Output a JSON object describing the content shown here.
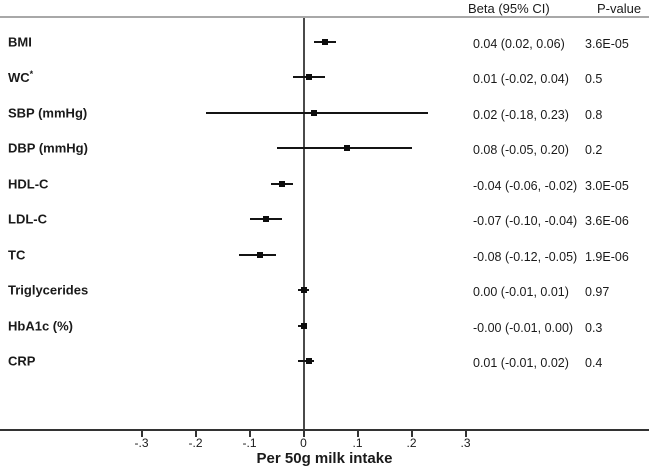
{
  "header": {
    "beta_ci_label": "Beta (95% CI)",
    "p_value_label": "P-value"
  },
  "colors": {
    "text": "#1a1a1a",
    "ci_line": "#141414",
    "marker": "#0d0d0d",
    "zero_line": "#4a4a4a",
    "axis_line": "#333333",
    "header_rule": "#a8a8a8",
    "background": "#ffffff"
  },
  "chart_data": {
    "type": "forest",
    "title": "",
    "xlabel": "Per 50g milk intake",
    "ylabel": "",
    "xlim": [
      -0.56,
      0.64
    ],
    "grid": false,
    "legend": "none",
    "x_ticks": [
      {
        "value": -0.3,
        "label": "-.3"
      },
      {
        "value": -0.2,
        "label": "-.2"
      },
      {
        "value": -0.1,
        "label": "-.1"
      },
      {
        "value": 0,
        "label": "0"
      },
      {
        "value": 0.1,
        "label": ".1"
      },
      {
        "value": 0.2,
        "label": ".2"
      },
      {
        "value": 0.3,
        "label": ".3"
      }
    ],
    "rows": [
      {
        "label": "BMI",
        "sup": "",
        "beta": 0.04,
        "lo": 0.02,
        "hi": 0.06,
        "beta_text": "0.04 (0.02, 0.06)",
        "p_text": "3.6E-05"
      },
      {
        "label": "WC",
        "sup": "*",
        "beta": 0.01,
        "lo": -0.02,
        "hi": 0.04,
        "beta_text": "0.01 (-0.02, 0.04)",
        "p_text": "0.5"
      },
      {
        "label": "SBP (mmHg)",
        "sup": "",
        "beta": 0.02,
        "lo": -0.18,
        "hi": 0.23,
        "beta_text": "0.02 (-0.18, 0.23)",
        "p_text": "0.8"
      },
      {
        "label": "DBP (mmHg)",
        "sup": "",
        "beta": 0.08,
        "lo": -0.05,
        "hi": 0.2,
        "beta_text": "0.08 (-0.05, 0.20)",
        "p_text": "0.2"
      },
      {
        "label": "HDL-C",
        "sup": "",
        "beta": -0.04,
        "lo": -0.06,
        "hi": -0.02,
        "beta_text": "-0.04 (-0.06, -0.02)",
        "p_text": "3.0E-05"
      },
      {
        "label": "LDL-C",
        "sup": "",
        "beta": -0.07,
        "lo": -0.1,
        "hi": -0.04,
        "beta_text": "-0.07 (-0.10, -0.04)",
        "p_text": "3.6E-06"
      },
      {
        "label": "TC",
        "sup": "",
        "beta": -0.08,
        "lo": -0.12,
        "hi": -0.05,
        "beta_text": "-0.08 (-0.12, -0.05)",
        "p_text": "1.9E-06"
      },
      {
        "label": "Triglycerides",
        "sup": "",
        "beta": 0.0,
        "lo": -0.01,
        "hi": 0.01,
        "beta_text": "0.00 (-0.01, 0.01)",
        "p_text": "0.97"
      },
      {
        "label": "HbA1c (%)",
        "sup": "",
        "beta": -0.0,
        "lo": -0.01,
        "hi": 0.0,
        "beta_text": "-0.00 (-0.01, 0.00)",
        "p_text": "0.3"
      },
      {
        "label": "CRP",
        "sup": "",
        "beta": 0.01,
        "lo": -0.01,
        "hi": 0.02,
        "beta_text": "0.01 (-0.01, 0.02)",
        "p_text": "0.4"
      }
    ]
  }
}
